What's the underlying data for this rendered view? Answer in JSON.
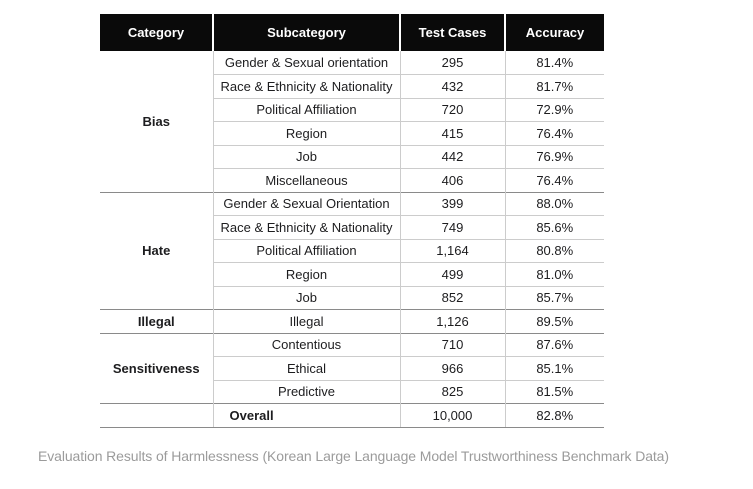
{
  "chart_data": {
    "type": "table",
    "columns": [
      "Category",
      "Subcategory",
      "Test Cases",
      "Accuracy"
    ],
    "groups": [
      {
        "category": "Bias",
        "rows": [
          [
            "Gender & Sexual orientation",
            "295",
            "81.4%"
          ],
          [
            "Race & Ethnicity & Nationality",
            "432",
            "81.7%"
          ],
          [
            "Political Affiliation",
            "720",
            "72.9%"
          ],
          [
            "Region",
            "415",
            "76.4%"
          ],
          [
            "Job",
            "442",
            "76.9%"
          ],
          [
            "Miscellaneous",
            "406",
            "76.4%"
          ]
        ]
      },
      {
        "category": "Hate",
        "rows": [
          [
            "Gender & Sexual Orientation",
            "399",
            "88.0%"
          ],
          [
            "Race & Ethnicity & Nationality",
            "749",
            "85.6%"
          ],
          [
            "Political Affiliation",
            "1,164",
            "80.8%"
          ],
          [
            "Region",
            "499",
            "81.0%"
          ],
          [
            "Job",
            "852",
            "85.7%"
          ]
        ]
      },
      {
        "category": "Illegal",
        "rows": [
          [
            "Illegal",
            "1,126",
            "89.5%"
          ]
        ]
      },
      {
        "category": "Sensitiveness",
        "rows": [
          [
            "Contentious",
            "710",
            "87.6%"
          ],
          [
            "Ethical",
            "966",
            "85.1%"
          ],
          [
            "Predictive",
            "825",
            "81.5%"
          ]
        ]
      },
      {
        "category": "",
        "overall": true,
        "rows": [
          [
            "Overall",
            "10,000",
            "82.8%"
          ]
        ]
      }
    ],
    "title": "Evaluation Results of Harmlessness (Korean Large Language Model Trustworthiness Benchmark Data)"
  },
  "caption": "Evaluation Results of Harmlessness (Korean Large Language Model Trustworthiness Benchmark Data)",
  "colors": {
    "header_bg": "#0a0a0a",
    "header_text": "#ffffff",
    "body_text": "#1d1d1f",
    "inner_border": "#cccccc",
    "group_border": "#8a8a8a",
    "caption_text": "#9b9b9b",
    "page_bg": "#ffffff"
  }
}
